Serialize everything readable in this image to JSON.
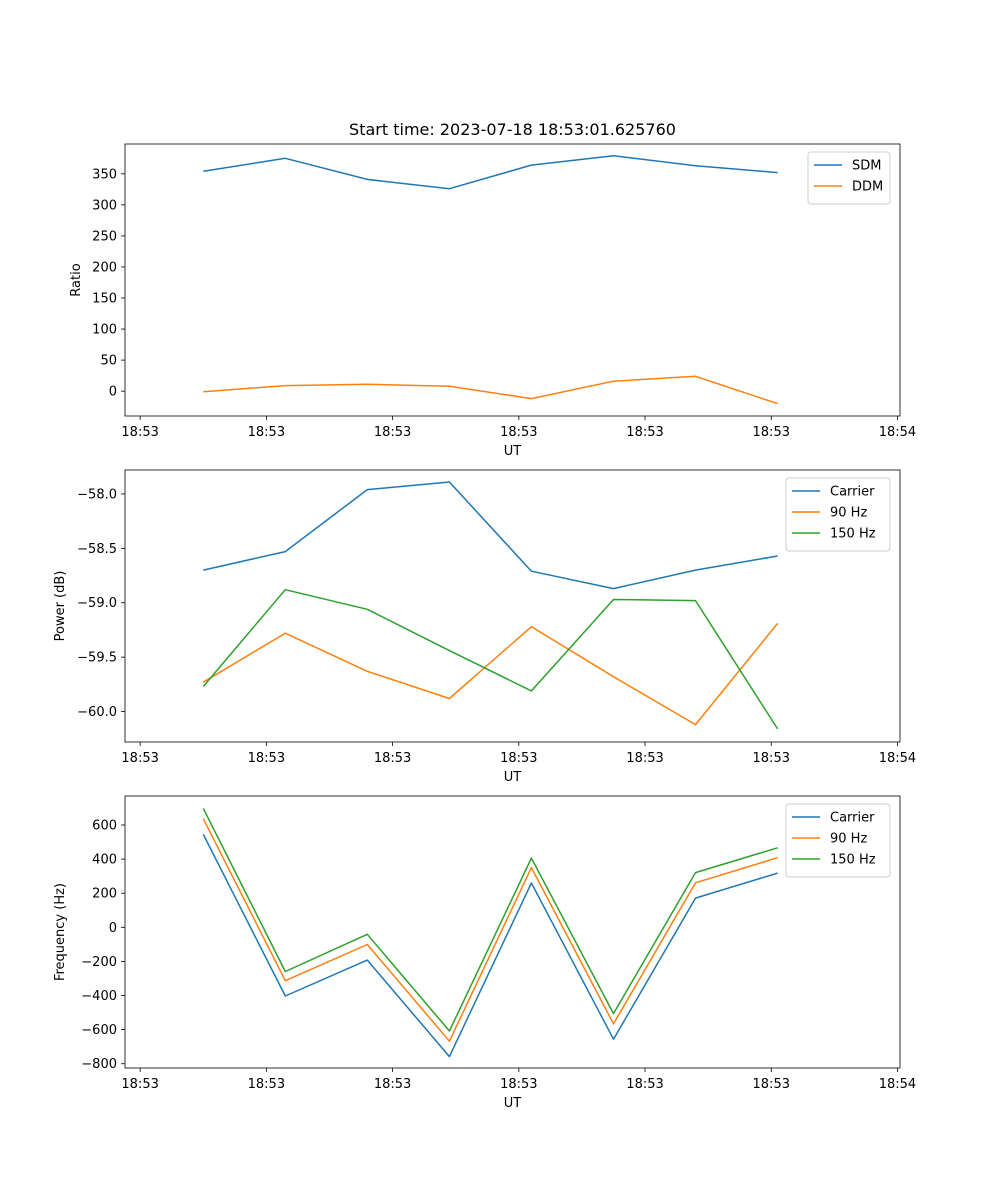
{
  "title": "Start time: 2023-07-18 18:53:01.625760",
  "chart_data": [
    {
      "type": "line",
      "title": "Start time: 2023-07-18 18:53:01.625760",
      "xlabel": "UT",
      "ylabel": "Ratio",
      "x_ticks": [
        0,
        1,
        2,
        3,
        4,
        5,
        6
      ],
      "x_tick_labels": [
        "18:53",
        "18:53",
        "18:53",
        "18:53",
        "18:53",
        "18:53",
        "18:54"
      ],
      "x_points": [
        0.5,
        1.15,
        1.8,
        2.45,
        3.1,
        3.75,
        4.4,
        5.05
      ],
      "xlim": [
        -0.12,
        6.02
      ],
      "ylim": [
        -40,
        398
      ],
      "y_ticks": [
        0,
        50,
        100,
        150,
        200,
        250,
        300,
        350
      ],
      "y_tick_labels": [
        "0",
        "50",
        "100",
        "150",
        "200",
        "250",
        "300",
        "350"
      ],
      "legend_position": "top-right",
      "series": [
        {
          "name": "SDM",
          "color": "#1f77b4",
          "values": [
            354,
            375,
            341,
            326,
            364,
            379,
            363,
            352
          ]
        },
        {
          "name": "DDM",
          "color": "#ff7f0e",
          "values": [
            -1,
            9,
            11,
            8,
            -12,
            16,
            24,
            -20
          ]
        }
      ]
    },
    {
      "type": "line",
      "title": "",
      "xlabel": "UT",
      "ylabel": "Power (dB)",
      "x_ticks": [
        0,
        1,
        2,
        3,
        4,
        5,
        6
      ],
      "x_tick_labels": [
        "18:53",
        "18:53",
        "18:53",
        "18:53",
        "18:53",
        "18:53",
        "18:54"
      ],
      "x_points": [
        0.5,
        1.15,
        1.8,
        2.45,
        3.1,
        3.75,
        4.4,
        5.05
      ],
      "xlim": [
        -0.12,
        6.02
      ],
      "ylim": [
        -60.28,
        -57.78
      ],
      "y_ticks": [
        -60.0,
        -59.5,
        -59.0,
        -58.5,
        -58.0
      ],
      "y_tick_labels": [
        "−60.0",
        "−59.5",
        "−59.0",
        "−58.5",
        "−58.0"
      ],
      "legend_position": "top-right",
      "series": [
        {
          "name": "Carrier",
          "color": "#1f77b4",
          "values": [
            -58.7,
            -58.53,
            -57.96,
            -57.89,
            -58.71,
            -58.87,
            -58.7,
            -58.57
          ]
        },
        {
          "name": "90 Hz",
          "color": "#ff7f0e",
          "values": [
            -59.73,
            -59.28,
            -59.63,
            -59.88,
            -59.22,
            -59.68,
            -60.12,
            -59.19
          ]
        },
        {
          "name": "150 Hz",
          "color": "#2ca02c",
          "values": [
            -59.77,
            -58.88,
            -59.06,
            -59.44,
            -59.81,
            -58.97,
            -58.98,
            -60.16
          ]
        }
      ]
    },
    {
      "type": "line",
      "title": "",
      "xlabel": "UT",
      "ylabel": "Frequency (Hz)",
      "x_ticks": [
        0,
        1,
        2,
        3,
        4,
        5,
        6
      ],
      "x_tick_labels": [
        "18:53",
        "18:53",
        "18:53",
        "18:53",
        "18:53",
        "18:53",
        "18:54"
      ],
      "x_points": [
        0.5,
        1.15,
        1.8,
        2.45,
        3.1,
        3.75,
        4.4,
        5.05
      ],
      "xlim": [
        -0.12,
        6.02
      ],
      "ylim": [
        -825,
        770
      ],
      "y_ticks": [
        -800,
        -600,
        -400,
        -200,
        0,
        200,
        400,
        600
      ],
      "y_tick_labels": [
        "−800",
        "−600",
        "−400",
        "−200",
        "0",
        "200",
        "400",
        "600"
      ],
      "legend_position": "top-right",
      "series": [
        {
          "name": "Carrier",
          "color": "#1f77b4",
          "values": [
            545,
            -403,
            -192,
            -758,
            260,
            -656,
            171,
            318
          ]
        },
        {
          "name": "90 Hz",
          "color": "#ff7f0e",
          "values": [
            637,
            -313,
            -101,
            -668,
            350,
            -566,
            261,
            408
          ]
        },
        {
          "name": "150 Hz",
          "color": "#2ca02c",
          "values": [
            697,
            -259,
            -41,
            -608,
            406,
            -506,
            321,
            466
          ]
        }
      ]
    }
  ]
}
